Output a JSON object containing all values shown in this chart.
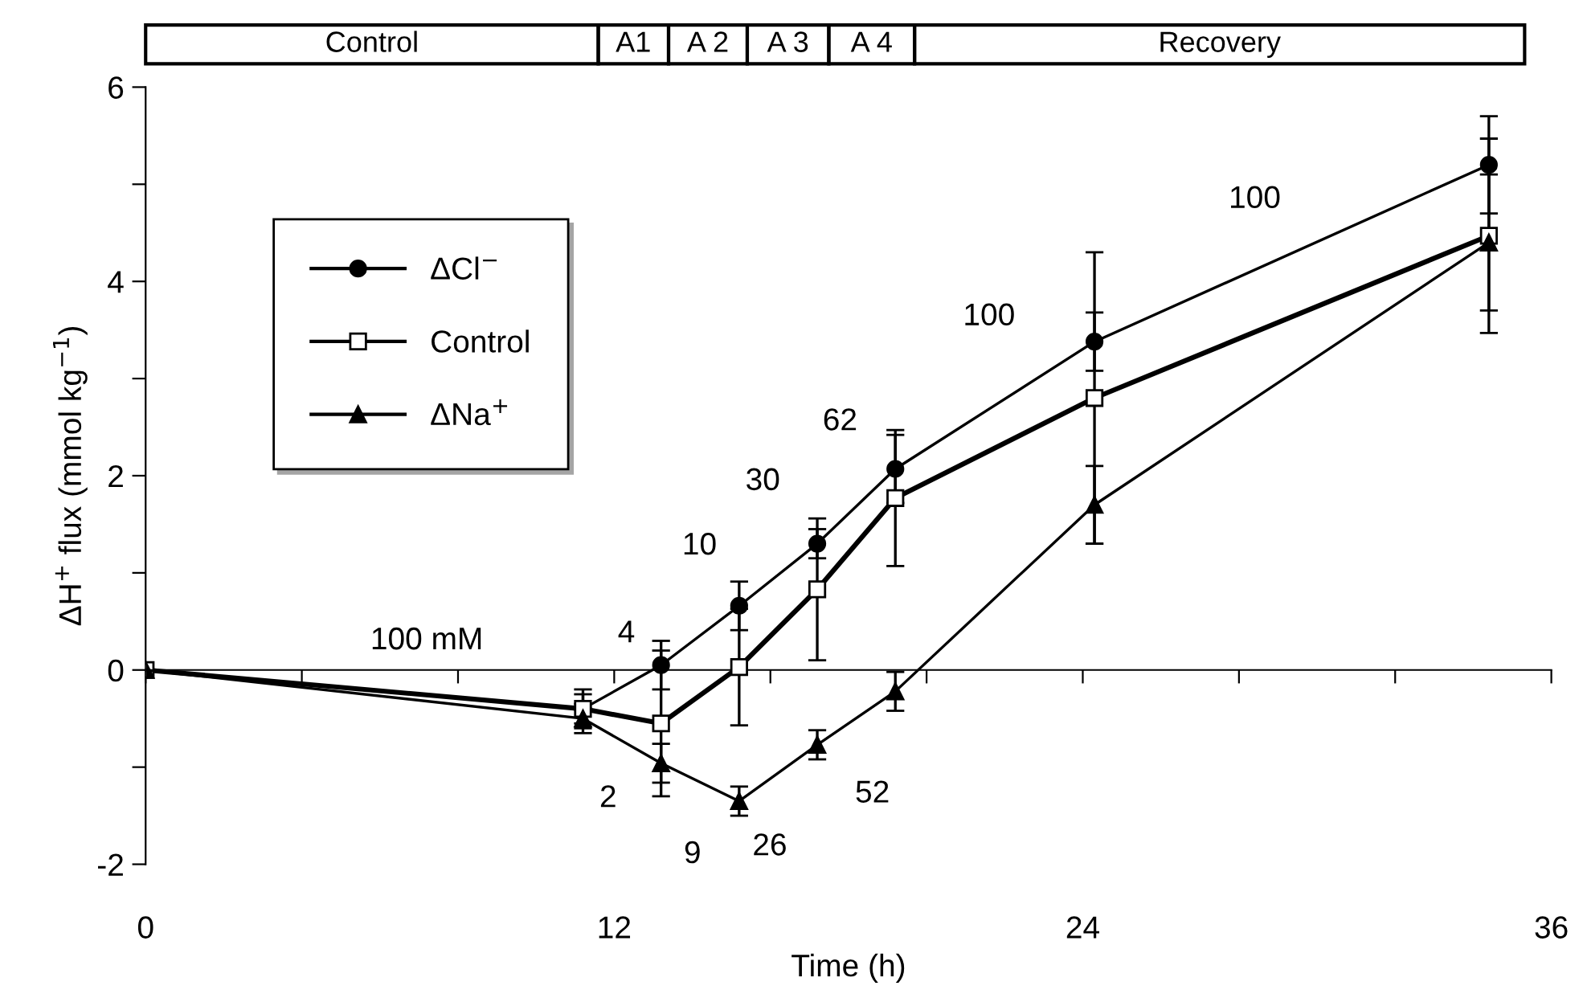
{
  "chart_data": {
    "type": "line",
    "xlabel": "Time (h)",
    "ylabel": "ΔH$^{+}$ flux (mmol kg$^{−1}$)",
    "xlim": [
      0,
      36
    ],
    "ylim": [
      -2,
      6
    ],
    "xticks": [
      0,
      {
        "value": 4,
        "label": null
      },
      {
        "value": 8,
        "label": null
      },
      12,
      {
        "value": 16,
        "label": null
      },
      {
        "value": 20,
        "label": null
      },
      24,
      {
        "value": 28,
        "label": null
      },
      {
        "value": 32,
        "label": null
      },
      36
    ],
    "yticks": [
      -2,
      {
        "value": -1,
        "label": null
      },
      0,
      {
        "value": 1,
        "label": null
      },
      2,
      {
        "value": 3,
        "label": null
      },
      4,
      {
        "value": 5,
        "label": null
      },
      6
    ],
    "series": [
      {
        "name": "ΔCl$^{−}$",
        "color": "#000000",
        "marker": "circle",
        "x": [
          0,
          11.2,
          13.2,
          15.2,
          17.2,
          19.2,
          24.3,
          34.4
        ],
        "values": [
          0,
          -0.4,
          0.05,
          0.66,
          1.3,
          2.07,
          3.38,
          5.2
        ],
        "errors": [
          null,
          0.15,
          0.25,
          0.25,
          0.15,
          0.35,
          0.3,
          0.5
        ]
      },
      {
        "name": "Control",
        "color": "#000000",
        "marker": "square",
        "x": [
          0,
          11.2,
          13.2,
          15.2,
          17.2,
          19.2,
          24.3,
          34.4
        ],
        "values": [
          0,
          -0.4,
          -0.55,
          0.03,
          0.83,
          1.77,
          2.8,
          4.47
        ],
        "errors": [
          null,
          0.2,
          0.75,
          0.6,
          0.73,
          0.7,
          1.5,
          1.0
        ]
      },
      {
        "name": "ΔNa$^{+}$",
        "color": "#000000",
        "marker": "triangle",
        "x": [
          0,
          11.2,
          13.2,
          15.2,
          17.2,
          19.2,
          24.3,
          34.4
        ],
        "values": [
          0,
          -0.5,
          -0.96,
          -1.35,
          -0.77,
          -0.22,
          1.7,
          4.4
        ],
        "errors": [
          null,
          0.15,
          0.2,
          0.15,
          0.15,
          0.2,
          0.4,
          0.7
        ]
      }
    ],
    "annotations": [
      "100 mM",
      "4",
      "10",
      "30",
      "62",
      "100",
      "100",
      "2",
      "9",
      "26",
      "52",
      "Control",
      "A1",
      "A 2",
      "A 3",
      "A 4",
      "Recovery"
    ],
    "legend": "top left",
    "line_style": "solid"
  }
}
